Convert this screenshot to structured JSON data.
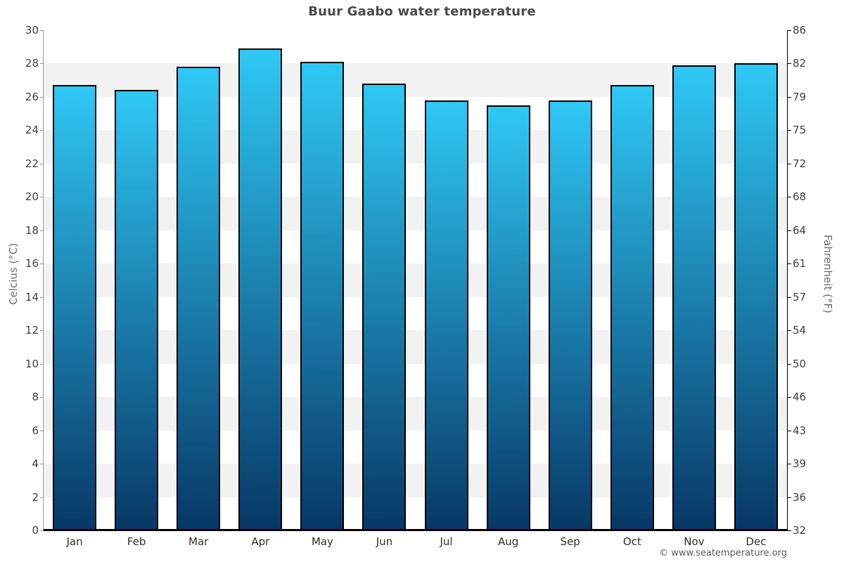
{
  "title": "Buur Gaabo water temperature",
  "axes": {
    "left": {
      "title": "Celcius (°C)",
      "ticks": [
        "30",
        "28",
        "26",
        "24",
        "22",
        "20",
        "18",
        "16",
        "14",
        "12",
        "10",
        "8",
        "6",
        "4",
        "2",
        "0"
      ]
    },
    "right": {
      "title": "Fahrenheit (°F)",
      "ticks": [
        "86",
        "82",
        "79",
        "75",
        "72",
        "68",
        "64",
        "61",
        "57",
        "54",
        "50",
        "46",
        "43",
        "39",
        "36",
        "32"
      ]
    }
  },
  "chart_data": {
    "type": "bar",
    "title": "Buur Gaabo water temperature",
    "categories": [
      "Jan",
      "Feb",
      "Mar",
      "Apr",
      "May",
      "Jun",
      "Jul",
      "Aug",
      "Sep",
      "Oct",
      "Nov",
      "Dec"
    ],
    "values": [
      26.7,
      26.4,
      27.8,
      28.9,
      28.1,
      26.8,
      25.8,
      25.5,
      25.8,
      26.7,
      27.9,
      28.0
    ],
    "unit": "°C",
    "xlabel": "",
    "ylabel_left": "Celcius (°C)",
    "ylabel_right": "Fahrenheit (°F)",
    "ylim_celsius": [
      0,
      30
    ],
    "ylim_fahrenheit": [
      32,
      86
    ],
    "tick_step_celsius": 2,
    "legend": "none",
    "grid": "alternating 2°C horizontal bands",
    "colors": {
      "bar_gradient_top": "#2fc8f5",
      "bar_gradient_bottom": "#083866",
      "bar_border": "#000000",
      "band_gray": "#f2f2f2",
      "band_white": "#ffffff"
    }
  },
  "footer": {
    "copyright": "© www.seatemperature.org"
  }
}
